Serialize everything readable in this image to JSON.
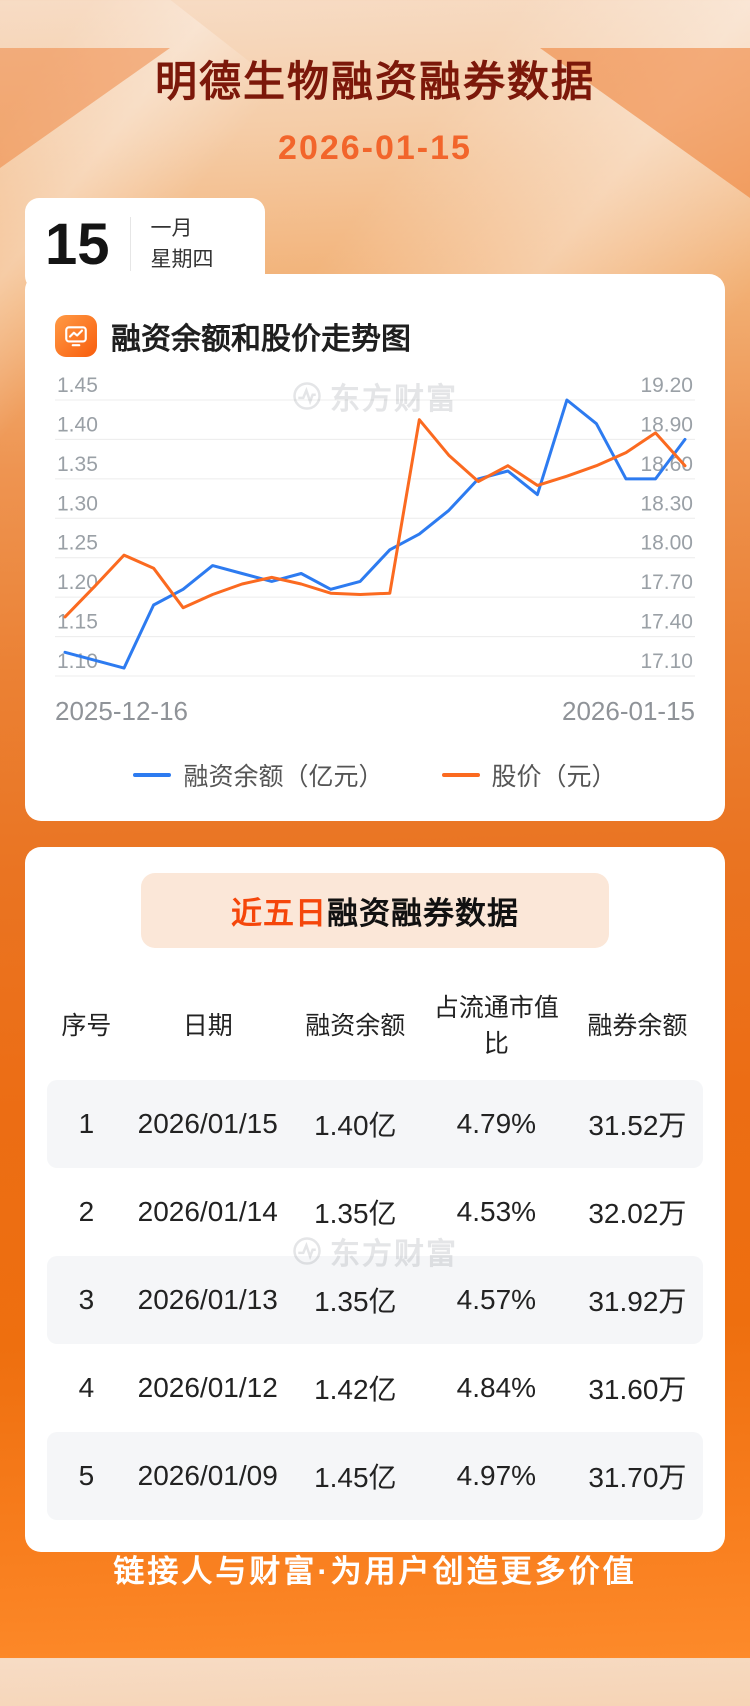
{
  "page": {
    "title": "明德生物融资融券数据",
    "date": "2026-01-15",
    "footer_slogan": "链接人与财富·为用户创造更多价值"
  },
  "calendar": {
    "day": "15",
    "month": "一月",
    "weekday": "星期四"
  },
  "chart_section": {
    "title": "融资余额和股价走势图",
    "watermark": "东方财富",
    "x_start_label": "2025-12-16",
    "x_end_label": "2026-01-15",
    "legend": [
      {
        "label": "融资余额（亿元）",
        "color": "#2d7bf0"
      },
      {
        "label": "股价（元）",
        "color": "#fb6a20"
      }
    ]
  },
  "chart_data": {
    "type": "line",
    "title": "融资余额和股价走势图",
    "x_range": [
      "2025-12-16",
      "2026-01-15"
    ],
    "grid": true,
    "legend_position": "bottom",
    "left_axis": {
      "label": "融资余额（亿元）",
      "min": 1.1,
      "max": 1.45,
      "ticks": [
        "1.45",
        "1.40",
        "1.35",
        "1.30",
        "1.25",
        "1.20",
        "1.15",
        "1.10"
      ]
    },
    "right_axis": {
      "label": "股价（元）",
      "min": 17.1,
      "max": 19.2,
      "ticks": [
        "19.20",
        "18.90",
        "18.60",
        "18.30",
        "18.00",
        "17.70",
        "17.40",
        "17.10"
      ]
    },
    "series": [
      {
        "name": "融资余额（亿元）",
        "axis": "left",
        "color": "#2d7bf0",
        "values": [
          1.13,
          1.12,
          1.11,
          1.19,
          1.21,
          1.24,
          1.23,
          1.22,
          1.23,
          1.21,
          1.22,
          1.26,
          1.28,
          1.31,
          1.35,
          1.36,
          1.33,
          1.45,
          1.42,
          1.35,
          1.35,
          1.4
        ]
      },
      {
        "name": "股价（元）",
        "axis": "right",
        "color": "#fb6a20",
        "values": [
          17.55,
          17.78,
          18.02,
          17.92,
          17.62,
          17.72,
          17.8,
          17.85,
          17.8,
          17.73,
          17.72,
          17.73,
          19.05,
          18.78,
          18.58,
          18.7,
          18.55,
          18.62,
          18.7,
          18.8,
          18.95,
          18.7
        ]
      }
    ]
  },
  "table_section": {
    "title_highlight": "近五日",
    "title_rest": "融资融券数据",
    "watermark": "东方财富",
    "columns": [
      "序号",
      "日期",
      "融资余额",
      "占流通市值比",
      "融券余额"
    ],
    "rows": [
      [
        "1",
        "2026/01/15",
        "1.40亿",
        "4.79%",
        "31.52万"
      ],
      [
        "2",
        "2026/01/14",
        "1.35亿",
        "4.53%",
        "32.02万"
      ],
      [
        "3",
        "2026/01/13",
        "1.35亿",
        "4.57%",
        "31.92万"
      ],
      [
        "4",
        "2026/01/12",
        "1.42亿",
        "4.84%",
        "31.60万"
      ],
      [
        "5",
        "2026/01/09",
        "1.45亿",
        "4.97%",
        "31.70万"
      ]
    ]
  }
}
